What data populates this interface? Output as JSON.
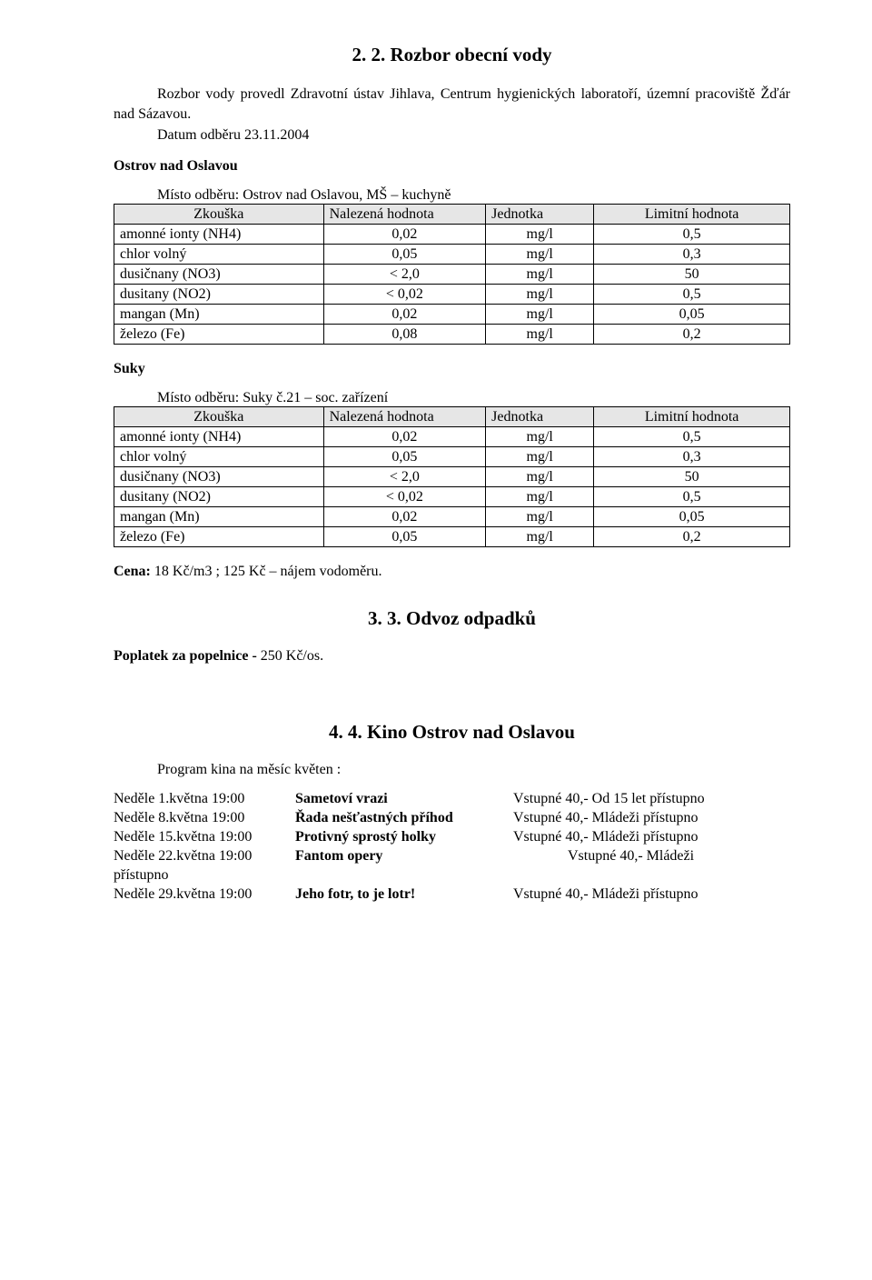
{
  "section2": {
    "title": "2. 2.  Rozbor obecní vody",
    "intro": "Rozbor vody provedl Zdravotní ústav Jihlava, Centrum hygienických laboratoří, územní pracoviště Žďár nad Sázavou.",
    "date_line": "Datum odběru 23.11.2004"
  },
  "ostrov": {
    "heading": "Ostrov nad Oslavou",
    "caption": "Místo odběru: Ostrov nad Oslavou, MŠ – kuchyně",
    "headers": [
      "Zkouška",
      "Nalezená hodnota",
      "Jednotka",
      "Limitní hodnota"
    ],
    "rows": [
      [
        "amonné ionty (NH4)",
        "0,02",
        "mg/l",
        "0,5"
      ],
      [
        "chlor volný",
        "0,05",
        "mg/l",
        "0,3"
      ],
      [
        "dusičnany (NO3)",
        "< 2,0",
        "mg/l",
        "50"
      ],
      [
        "dusitany (NO2)",
        "< 0,02",
        "mg/l",
        "0,5"
      ],
      [
        "mangan (Mn)",
        "0,02",
        "mg/l",
        "0,05"
      ],
      [
        "železo (Fe)",
        "0,08",
        "mg/l",
        "0,2"
      ]
    ]
  },
  "suky": {
    "heading": "Suky",
    "caption": "Místo odběru: Suky č.21 – soc. zařízení",
    "headers": [
      "Zkouška",
      "Nalezená hodnota",
      "Jednotka",
      "Limitní hodnota"
    ],
    "rows": [
      [
        "amonné ionty (NH4)",
        "0,02",
        "mg/l",
        "0,5"
      ],
      [
        "chlor volný",
        "0,05",
        "mg/l",
        "0,3"
      ],
      [
        "dusičnany (NO3)",
        "< 2,0",
        "mg/l",
        "50"
      ],
      [
        "dusitany (NO2)",
        "< 0,02",
        "mg/l",
        "0,5"
      ],
      [
        "mangan (Mn)",
        "0,02",
        "mg/l",
        "0,05"
      ],
      [
        "železo (Fe)",
        "0,05",
        "mg/l",
        "0,2"
      ]
    ]
  },
  "cena_label": "Cena:",
  "cena_text": " 18 Kč/m3 ; 125 Kč – nájem vodoměru.",
  "section3": {
    "title": "3. 3.  Odvoz odpadků",
    "popl_label": "Poplatek za popelnice - ",
    "popl_value": "250 Kč/os."
  },
  "section4": {
    "title": "4. 4.  Kino Ostrov nad Oslavou",
    "program_line": "Program kina  na měsíc květen :",
    "rows": [
      {
        "day": "Neděle   1.května 19:00",
        "title": "Sametoví vrazi",
        "note": "Vstupné 40,-   Od 15 let přístupno"
      },
      {
        "day": "Neděle   8.května 19:00",
        "title": "Řada nešťastných příhod",
        "note": "Vstupné 40,-   Mládeži přístupno"
      },
      {
        "day": "Neděle 15.května 19:00",
        "title": "Protivný sprostý holky",
        "note": "Vstupné 40,-   Mládeži přístupno"
      },
      {
        "day": "Neděle 22.května 19:00",
        "title": "Fantom opery",
        "note_indent": true,
        "note": "Vstupné 40,-   Mládeži"
      },
      {
        "day": "přístupno",
        "title": "",
        "note": ""
      },
      {
        "day": "Neděle 29.května 19:00",
        "title": "Jeho fotr, to je lotr!",
        "note": "Vstupné 40,-   Mládeži přístupno"
      }
    ]
  },
  "style": {
    "bg": "#ffffff",
    "text": "#000000",
    "header_bg": "#e6e6e6",
    "font_family": "Times New Roman"
  }
}
